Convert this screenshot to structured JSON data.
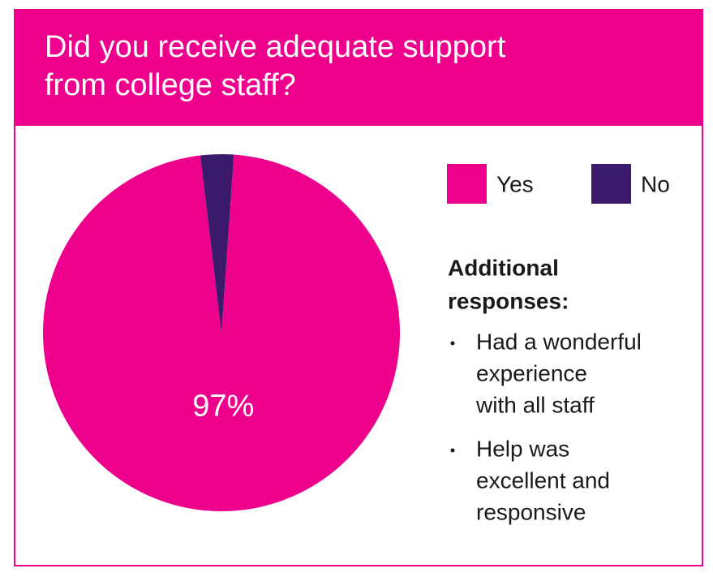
{
  "chart_data": {
    "type": "pie",
    "title": [
      "Did you receive adequate support",
      "from college staff?"
    ],
    "categories": [
      "Yes",
      "No"
    ],
    "values": [
      97,
      3
    ],
    "value_labels": [
      "97%",
      null
    ],
    "colors": [
      "#ec008c",
      "#3b1a6b"
    ],
    "legend": "top-right",
    "notes": {
      "title": [
        "Additional",
        "responses:"
      ],
      "items": [
        [
          "Had a wonderful",
          "experience",
          "with all staff"
        ],
        [
          "Help was",
          "excellent and",
          "responsive"
        ]
      ]
    }
  }
}
